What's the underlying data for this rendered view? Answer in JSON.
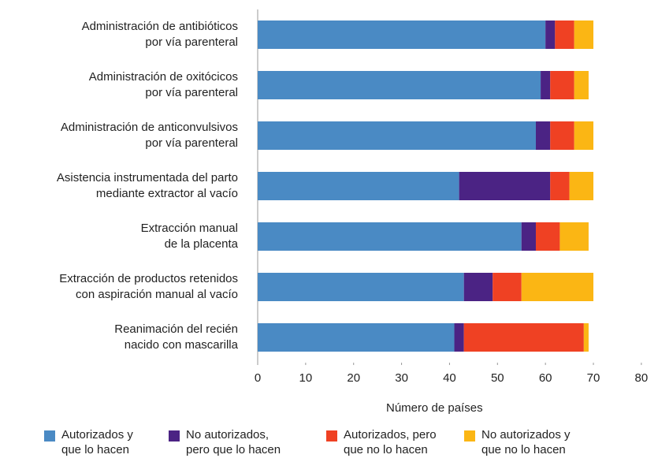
{
  "chart_data": {
    "type": "stacked_barh",
    "categories": [
      "Administración de antibióticos\npor vía parenteral",
      "Administración de oxitócicos\npor vía parenteral",
      "Administración de anticonvulsivos\npor vía parenteral",
      "Asistencia instrumentada del parto\nmediante extractor al vacío",
      "Extracción manual\nde la placenta",
      "Extracción de productos retenidos\ncon aspiración manual al vacío",
      "Reanimación del recién\nnacido con mascarilla"
    ],
    "series": [
      {
        "name": "Autorizados y\nque lo hacen",
        "color": "#4a8ac4",
        "values": [
          60,
          59,
          58,
          42,
          55,
          43,
          41
        ]
      },
      {
        "name": "No autorizados,\npero que lo hacen",
        "color": "#4b2384",
        "values": [
          2,
          2,
          3,
          19,
          3,
          6,
          2
        ]
      },
      {
        "name": "Autorizados, pero\nque no lo hacen",
        "color": "#ef4123",
        "values": [
          4,
          5,
          5,
          4,
          5,
          6,
          25
        ]
      },
      {
        "name": "No autorizados y\nque no lo hacen",
        "color": "#fbb614",
        "values": [
          4,
          3,
          4,
          5,
          6,
          15,
          1
        ]
      }
    ],
    "xlabel": "Número de países",
    "xlim": [
      0,
      80
    ],
    "xticks": [
      0,
      10,
      20,
      30,
      40,
      50,
      60,
      70,
      80
    ],
    "grid": false,
    "legend": "bottom"
  }
}
